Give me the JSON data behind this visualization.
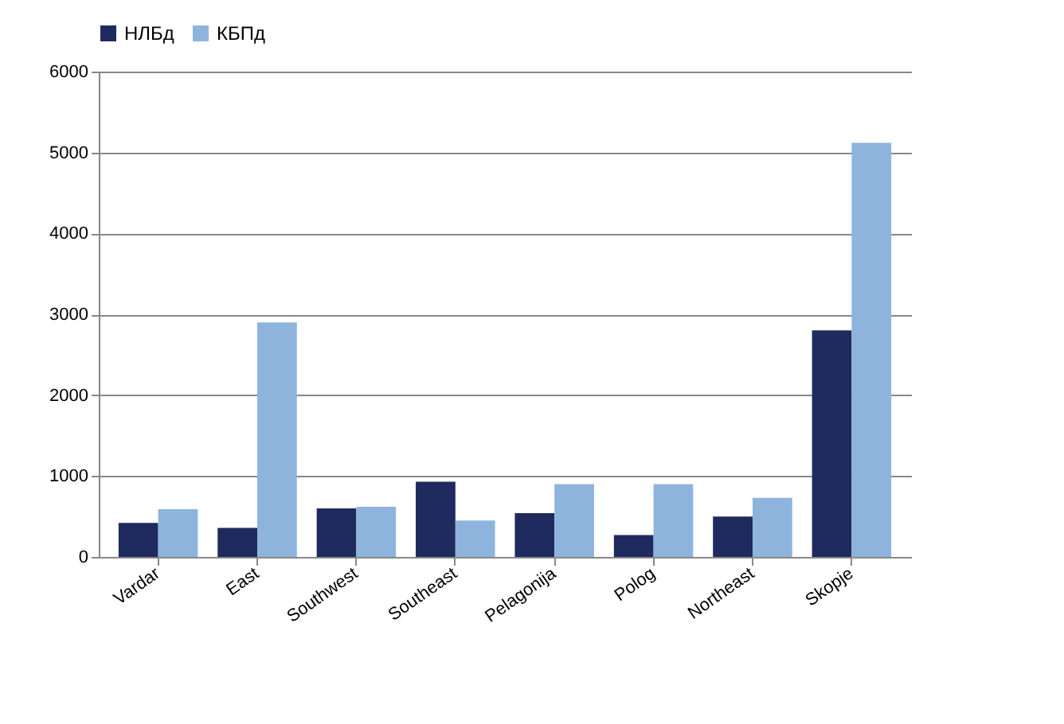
{
  "chart_data": {
    "type": "bar",
    "categories": [
      "Vardar",
      "East",
      "Southwest",
      "Southeast",
      "Pelagonija",
      "Polog",
      "Northeast",
      "Skopje"
    ],
    "series": [
      {
        "name": "НЛБд",
        "color": "#1f2a5e",
        "values": [
          420,
          360,
          600,
          930,
          540,
          270,
          500,
          2800
        ]
      },
      {
        "name": "КБПд",
        "color": "#8eb4de",
        "values": [
          590,
          2900,
          620,
          450,
          900,
          900,
          730,
          5120
        ]
      }
    ],
    "ylim": [
      0,
      6000
    ],
    "yticks": [
      0,
      1000,
      2000,
      3000,
      4000,
      5000,
      6000
    ],
    "grid": "y",
    "legend": "top"
  }
}
